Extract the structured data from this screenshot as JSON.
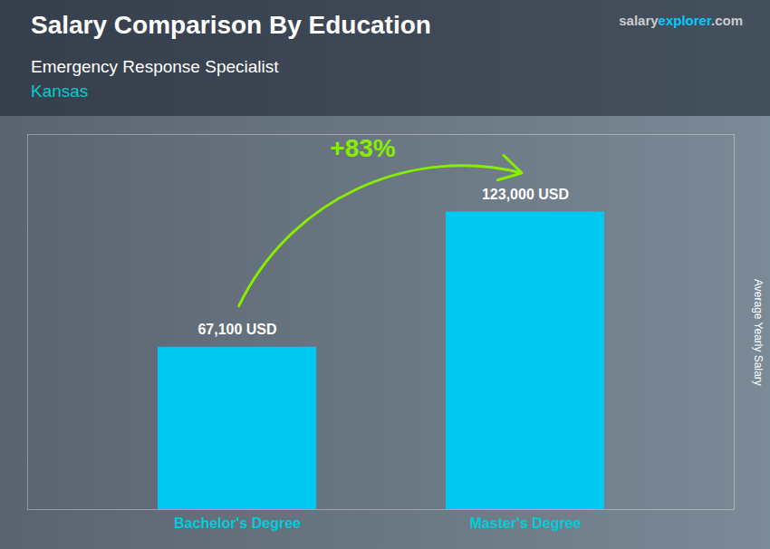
{
  "chart_data": {
    "type": "bar",
    "title": "Salary Comparison By Education",
    "subtitle": "Emergency Response Specialist",
    "ylabel": "Average Yearly Salary",
    "categories": [
      "Bachelor's Degree",
      "Master's Degree"
    ],
    "values": [
      67100,
      123000
    ],
    "value_labels": [
      "67,100 USD",
      "123,000 USD"
    ],
    "data_labels": true,
    "color": "#00C8F0",
    "ylim": [
      0,
      155000
    ],
    "tick_labels": "x",
    "grid": false,
    "annotations": [
      {
        "text": "Kansas",
        "color": "#00CCCC"
      },
      {
        "text": "+83%",
        "color": "#88EE00",
        "from": "Bachelor's Degree",
        "to": "Master's Degree"
      },
      {
        "text": "salary",
        "color": "#CCCCCC"
      },
      {
        "text": "explorer",
        "color": "#00CCFF"
      },
      {
        "text": ".com",
        "color": "#CCCCCC"
      }
    ]
  }
}
